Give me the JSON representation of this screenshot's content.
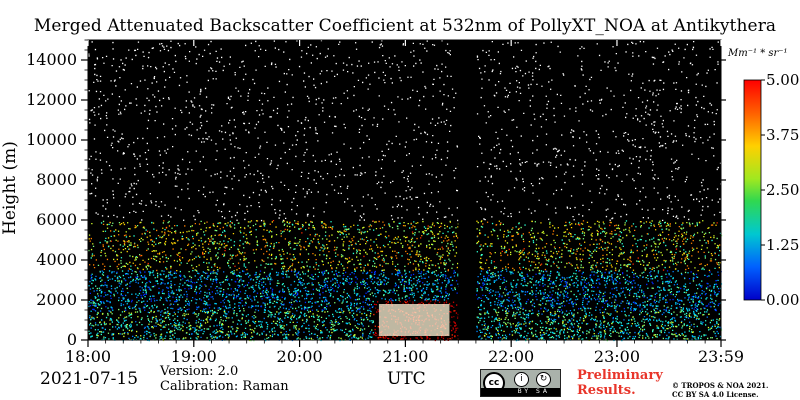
{
  "chart_data": {
    "type": "heatmap",
    "title": "Merged Attenuated Backscatter Coefficient at 532nm of PollyXT_NOA at Antikythera",
    "xlabel": "UTC",
    "ylabel": "Height (m)",
    "x_range": [
      "18:00",
      "23:59"
    ],
    "y_range": [
      0,
      15000
    ],
    "x_ticks": [
      "18:00",
      "19:00",
      "20:00",
      "21:00",
      "22:00",
      "23:00",
      "23:59"
    ],
    "y_ticks": [
      "0",
      "2000",
      "4000",
      "6000",
      "8000",
      "10000",
      "12000",
      "14000"
    ],
    "colorbar": {
      "unit": "Mm⁻¹ * sr⁻¹",
      "range": [
        0.0,
        5.0
      ],
      "ticks": [
        "0.00",
        "1.25",
        "2.50",
        "3.75",
        "5.00"
      ],
      "colormap": "jet"
    },
    "data_gap": [
      "21:30",
      "21:40"
    ],
    "colors": {
      "background": "#000000",
      "max": "#ff0000",
      "min": "#0000ff"
    }
  },
  "footer": {
    "date": "2021-07-15",
    "version": "Version: 2.0",
    "calibration": "Calibration: Raman",
    "preliminary_line1": "Preliminary",
    "preliminary_line2": "Results.",
    "copyright_line1": "© TROPOS & NOA 2021.",
    "copyright_line2": "CC BY SA 4.0 License.",
    "license_badge": {
      "cc": "cc",
      "by": "BY",
      "sa": "SA"
    }
  }
}
